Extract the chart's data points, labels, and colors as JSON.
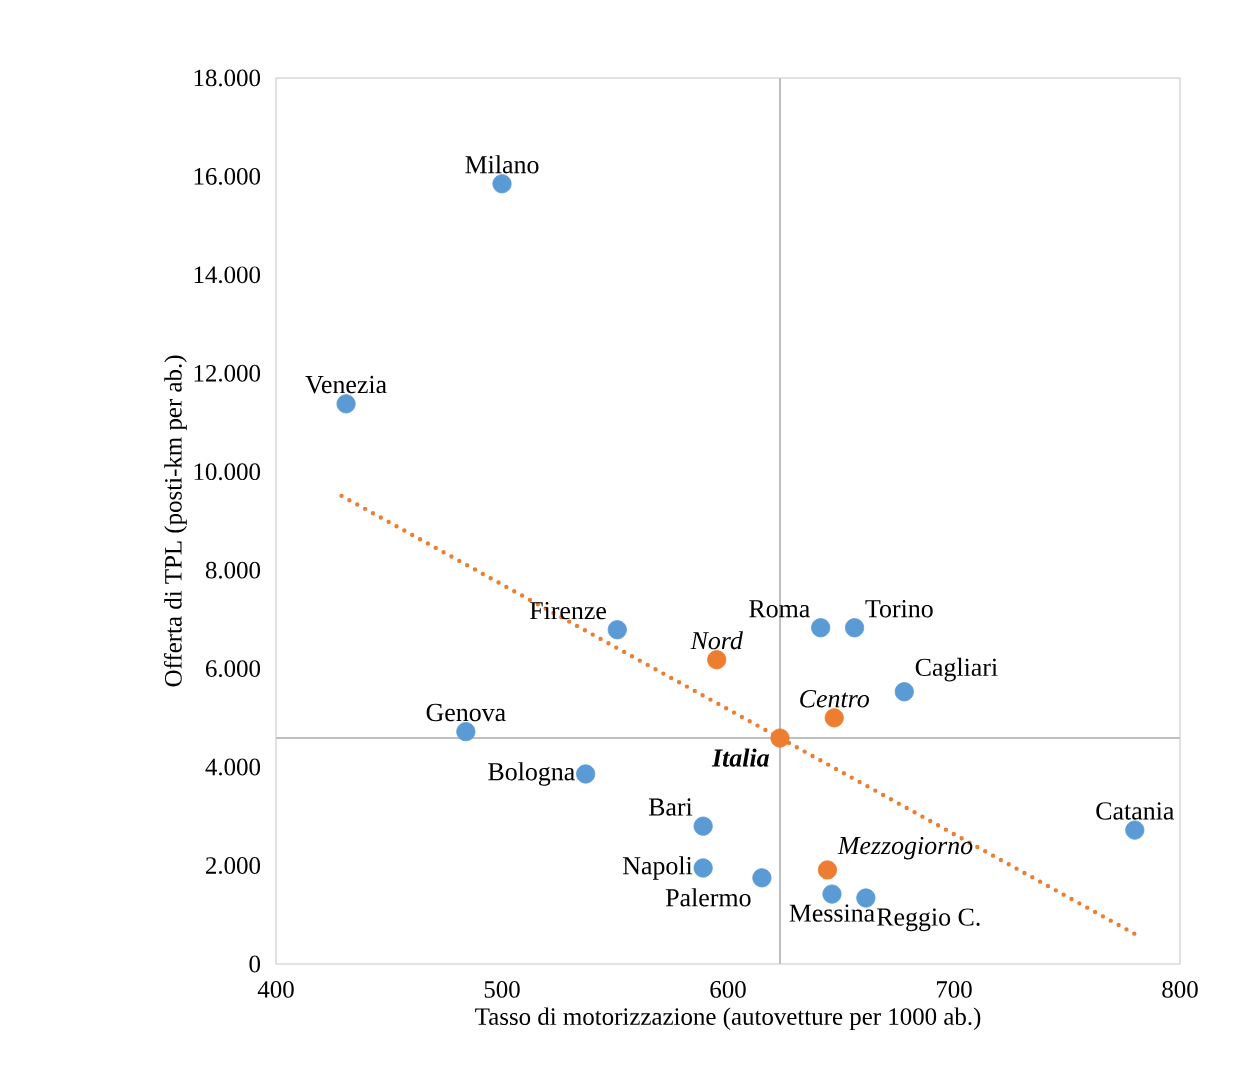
{
  "chart_data": {
    "type": "scatter",
    "xlabel": "Tasso di motorizzazione (autovetture per 1000 ab.)",
    "ylabel": "Offerta di TPL (posti-km per ab.)",
    "xlim": [
      400,
      800
    ],
    "xticks": [
      400,
      500,
      600,
      700,
      800
    ],
    "ylim": [
      0,
      18000
    ],
    "yticks": [
      0,
      {
        "value": 2000,
        "label": "2.000"
      },
      {
        "value": 4000,
        "label": "4.000"
      },
      {
        "value": 6000,
        "label": "6.000"
      },
      {
        "value": 8000,
        "label": "8.000"
      },
      {
        "value": 10000,
        "label": "10.000"
      },
      {
        "value": 12000,
        "label": "12.000"
      },
      {
        "value": 14000,
        "label": "14.000"
      },
      {
        "value": 16000,
        "label": "16.000"
      },
      {
        "value": 18000,
        "label": "18.000"
      }
    ],
    "marker": "circle",
    "legend": false,
    "grid": false,
    "series": [
      {
        "color": "#5b9bd5",
        "x": [
          500,
          431,
          551,
          641,
          656,
          678,
          484,
          537,
          589,
          589,
          615,
          646,
          661,
          780
        ],
        "values": [
          15850,
          11380,
          6790,
          6830,
          6830,
          5530,
          4720,
          3860,
          2800,
          1950,
          1750,
          1420,
          1340,
          2720
        ]
      },
      {
        "color": "#ed7d31",
        "x": [
          595,
          647,
          623,
          644
        ],
        "values": [
          6180,
          5000,
          4590,
          1910
        ]
      },
      {
        "type": "line",
        "color": "#ed7d31",
        "line_style": "dotted",
        "marker": "none",
        "x": [
          429,
          780
        ],
        "values": [
          9510,
          610
        ]
      }
    ],
    "ref_lines": [
      {
        "axis": "x",
        "value": 623,
        "color": "#bfbfbf"
      },
      {
        "axis": "y",
        "value": 4590,
        "color": "#bfbfbf"
      }
    ],
    "annotations": [
      {
        "text": "Milano",
        "x": 500,
        "y": 15850
      },
      {
        "text": "Venezia",
        "x": 431,
        "y": 11380
      },
      {
        "text": "Firenze",
        "x": 551,
        "y": 6790
      },
      {
        "text": "Roma",
        "x": 641,
        "y": 6830
      },
      {
        "text": "Torino",
        "x": 656,
        "y": 6830
      },
      {
        "text": "Cagliari",
        "x": 678,
        "y": 5530
      },
      {
        "text": "Genova",
        "x": 484,
        "y": 4720
      },
      {
        "text": "Bologna",
        "x": 537,
        "y": 3860
      },
      {
        "text": "Bari",
        "x": 589,
        "y": 2800
      },
      {
        "text": "Napoli",
        "x": 589,
        "y": 1950
      },
      {
        "text": "Palermo",
        "x": 615,
        "y": 1750
      },
      {
        "text": "Messina",
        "x": 646,
        "y": 1420
      },
      {
        "text": "Reggio C.",
        "x": 661,
        "y": 1340
      },
      {
        "text": "Catania",
        "x": 780,
        "y": 2720
      },
      {
        "text": "Nord",
        "x": 595,
        "y": 6180
      },
      {
        "text": "Centro",
        "x": 647,
        "y": 5000
      },
      {
        "text": "**Italia**",
        "x": 623,
        "y": 4590
      },
      {
        "text": "Mezzogiorno",
        "x": 644,
        "y": 1910
      }
    ]
  }
}
